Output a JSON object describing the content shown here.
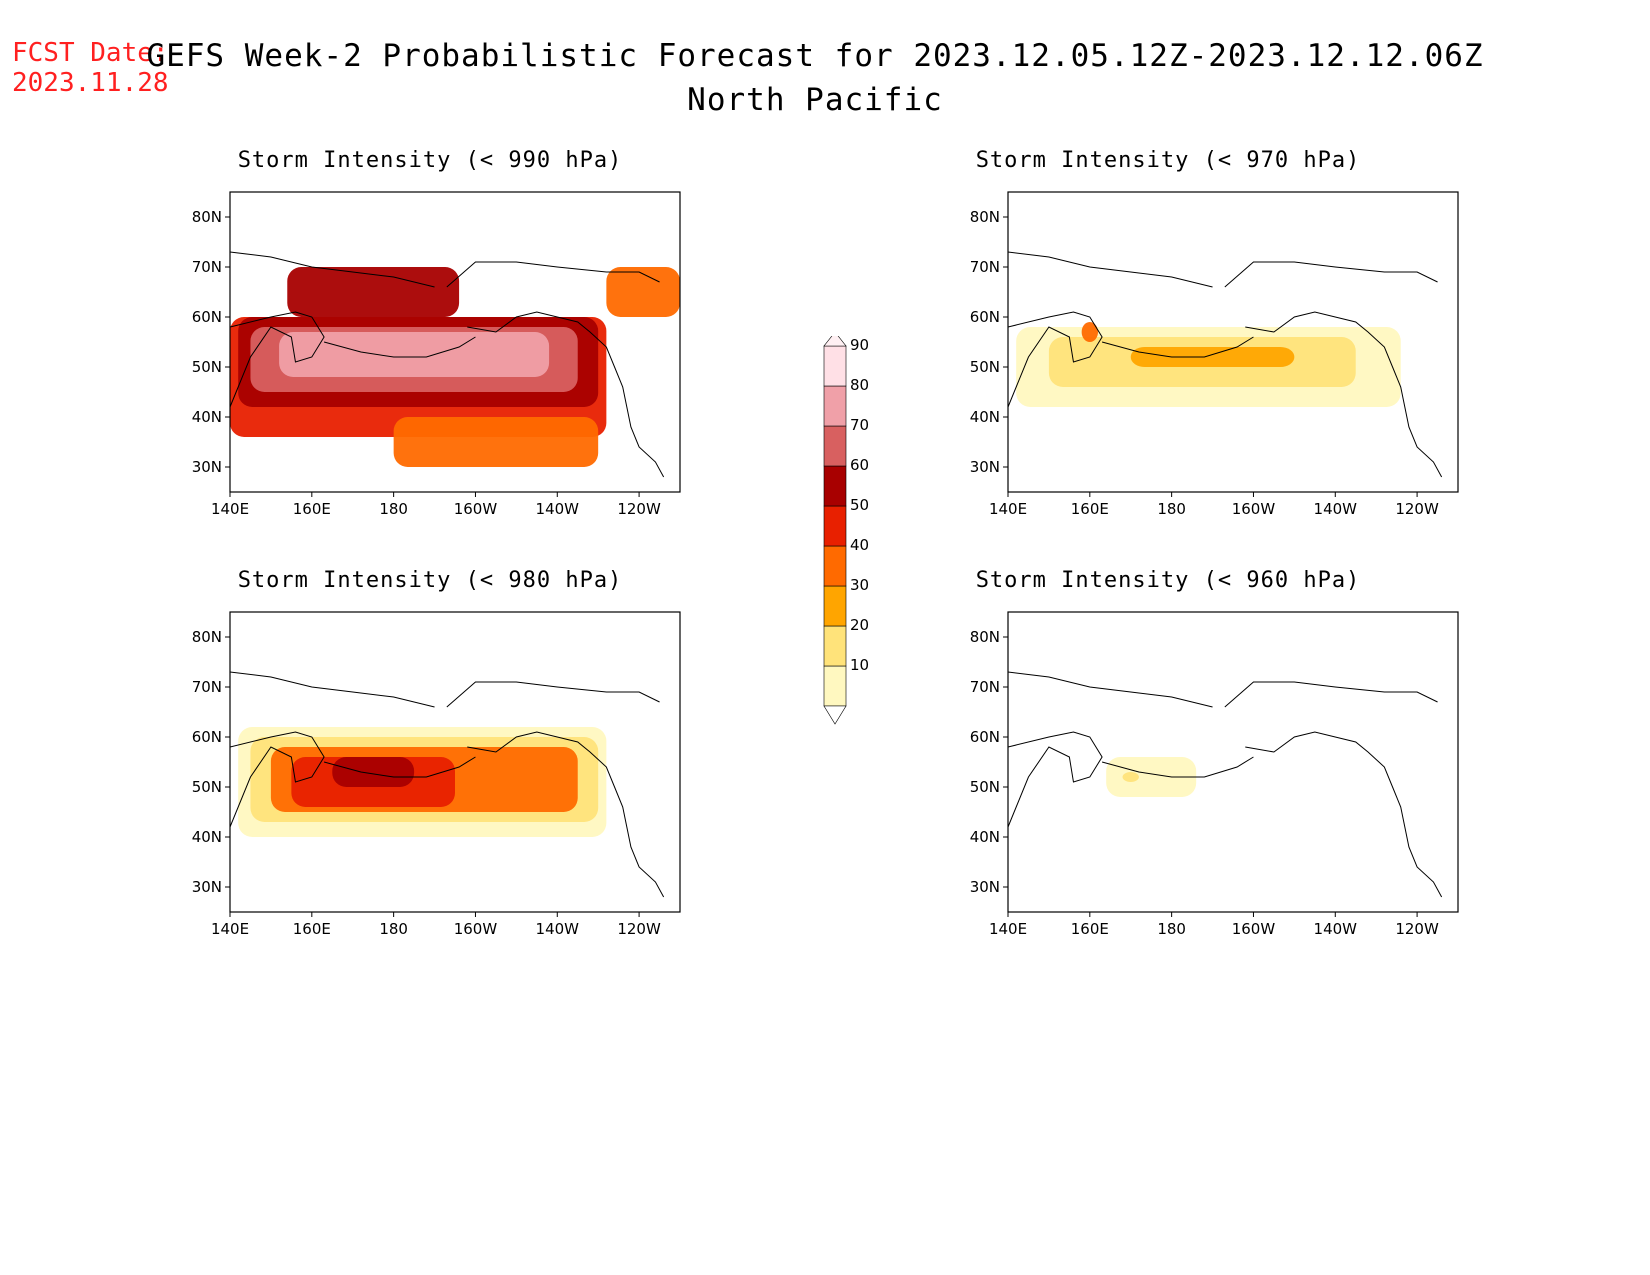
{
  "header": {
    "fcst_label": "FCST Date:",
    "fcst_date": "2023.11.28",
    "title_line1": "GEFS Week-2 Probabilistic Forecast for 2023.12.05.12Z-2023.12.12.06Z",
    "title_line2": "North Pacific"
  },
  "panels": [
    {
      "id": "p990",
      "title": "Storm Intensity (< 990 hPa)",
      "threshold_hpa": 990
    },
    {
      "id": "p970",
      "title": "Storm Intensity (< 970 hPa)",
      "threshold_hpa": 970
    },
    {
      "id": "p980",
      "title": "Storm Intensity (< 980 hPa)",
      "threshold_hpa": 980
    },
    {
      "id": "p960",
      "title": "Storm Intensity (< 960 hPa)",
      "threshold_hpa": 960
    }
  ],
  "axes": {
    "lat_labels": [
      "80N",
      "70N",
      "60N",
      "50N",
      "40N",
      "30N"
    ],
    "lon_labels": [
      "140E",
      "160E",
      "180",
      "160W",
      "140W",
      "120W"
    ],
    "lat_range": [
      25,
      85
    ],
    "lon_range": [
      140,
      250
    ]
  },
  "colorbar": {
    "levels": [
      "10",
      "20",
      "30",
      "40",
      "50",
      "60",
      "70",
      "80",
      "90"
    ],
    "colors": [
      "#fff8c0",
      "#ffe37a",
      "#ffa500",
      "#ff6a00",
      "#e82000",
      "#a80000",
      "#d86060",
      "#f0a0a8",
      "#ffe0e6"
    ]
  },
  "chart_data": {
    "type": "heatmap",
    "units": "probability (%)",
    "regions": [
      {
        "panel": "p990",
        "areas": [
          {
            "lat": [
              36,
              60
            ],
            "lon": [
              140,
              232
            ],
            "level": 50
          },
          {
            "lat": [
              42,
              60
            ],
            "lon": [
              142,
              230
            ],
            "level": 60
          },
          {
            "lat": [
              45,
              58
            ],
            "lon": [
              145,
              225
            ],
            "level": 70
          },
          {
            "lat": [
              48,
              57
            ],
            "lon": [
              152,
              218
            ],
            "level": 80
          },
          {
            "lat": [
              60,
              70
            ],
            "lon": [
              154,
              196
            ],
            "level": 60
          },
          {
            "lat": [
              60,
              70
            ],
            "lon": [
              232,
              250
            ],
            "level": 40
          },
          {
            "lat": [
              30,
              40
            ],
            "lon": [
              180,
              230
            ],
            "level": 40
          }
        ]
      },
      {
        "panel": "p970",
        "areas": [
          {
            "lat": [
              42,
              58
            ],
            "lon": [
              142,
              236
            ],
            "level": 10
          },
          {
            "lat": [
              46,
              56
            ],
            "lon": [
              150,
              225
            ],
            "level": 20
          },
          {
            "lat": [
              50,
              54
            ],
            "lon": [
              170,
              210
            ],
            "level": 30
          },
          {
            "lat": [
              55,
              59
            ],
            "lon": [
              158,
              162
            ],
            "level": 40
          }
        ]
      },
      {
        "panel": "p980",
        "areas": [
          {
            "lat": [
              40,
              62
            ],
            "lon": [
              142,
              232
            ],
            "level": 10
          },
          {
            "lat": [
              43,
              60
            ],
            "lon": [
              145,
              230
            ],
            "level": 20
          },
          {
            "lat": [
              45,
              58
            ],
            "lon": [
              150,
              225
            ],
            "level": 40
          },
          {
            "lat": [
              46,
              56
            ],
            "lon": [
              155,
              195
            ],
            "level": 50
          },
          {
            "lat": [
              50,
              56
            ],
            "lon": [
              165,
              185
            ],
            "level": 60
          }
        ]
      },
      {
        "panel": "p960",
        "areas": [
          {
            "lat": [
              48,
              56
            ],
            "lon": [
              164,
              186
            ],
            "level": 10
          },
          {
            "lat": [
              51,
              53
            ],
            "lon": [
              168,
              172
            ],
            "level": 20
          }
        ]
      }
    ]
  }
}
